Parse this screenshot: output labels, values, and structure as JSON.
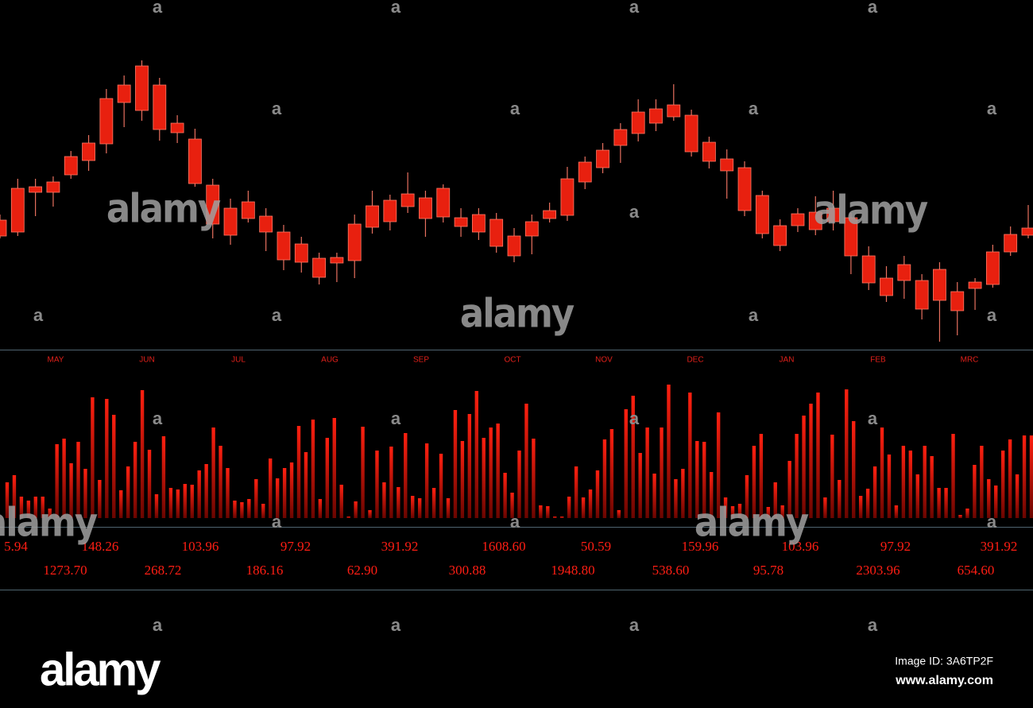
{
  "chart_data": {
    "type": "candlestick",
    "x_labels": [
      "MAY",
      "JUN",
      "JUL",
      "AUG",
      "SEP",
      "OCT",
      "NOV",
      "DEC",
      "JAN",
      "FEB",
      "MRC"
    ],
    "ylim": [
      0,
      360
    ],
    "series": [
      {
        "color": "#e8200f",
        "open": [
          133,
          138,
          188,
          188,
          210,
          228,
          249,
          301,
          291,
          267,
          263,
          199,
          148,
          134,
          155,
          138,
          103,
          100,
          81,
          99,
          102,
          144,
          151,
          170,
          155,
          157,
          145,
          138,
          120,
          108,
          133,
          155,
          159,
          201,
          219,
          247,
          262,
          275,
          283,
          239,
          227,
          215,
          165,
          136,
          121,
          146,
          141,
          151,
          108,
          74,
          58,
          77,
          41,
          52,
          39,
          67,
          72,
          113,
          134
        ],
        "high": [
          160,
          205,
          205,
          208,
          240,
          260,
          318,
          335,
          354,
          332,
          285,
          268,
          205,
          180,
          190,
          168,
          147,
          132,
          112,
          112,
          160,
          190,
          185,
          213,
          190,
          198,
          168,
          168,
          162,
          143,
          160,
          175,
          220,
          233,
          250,
          275,
          305,
          305,
          324,
          292,
          258,
          242,
          227,
          190,
          154,
          168,
          183,
          190,
          162,
          120,
          95,
          108,
          85,
          100,
          75,
          80,
          122,
          145,
          172
        ],
        "low": [
          130,
          133,
          158,
          170,
          205,
          215,
          237,
          270,
          278,
          253,
          250,
          195,
          130,
          122,
          150,
          114,
          90,
          87,
          72,
          75,
          80,
          136,
          140,
          162,
          132,
          150,
          132,
          128,
          112,
          100,
          110,
          150,
          152,
          192,
          212,
          225,
          252,
          265,
          278,
          233,
          218,
          180,
          158,
          130,
          114,
          138,
          134,
          140,
          85,
          65,
          50,
          54,
          28,
          0,
          8,
          40,
          68,
          108,
          130
        ],
        "close": [
          153,
          193,
          195,
          201,
          233,
          250,
          306,
          323,
          347,
          323,
          275,
          255,
          197,
          168,
          176,
          158,
          138,
          123,
          105,
          106,
          148,
          171,
          178,
          186,
          181,
          193,
          156,
          160,
          154,
          133,
          151,
          165,
          205,
          226,
          241,
          267,
          289,
          293,
          298,
          285,
          251,
          230,
          219,
          184,
          146,
          161,
          163,
          168,
          156,
          108,
          80,
          97,
          77,
          91,
          63,
          75,
          113,
          135,
          143
        ]
      }
    ],
    "volume": {
      "type": "bar",
      "color": "#ff1a0a",
      "ylim": [
        0,
        170
      ],
      "values": [
        45,
        54,
        27,
        22,
        27,
        27,
        12,
        93,
        100,
        69,
        96,
        62,
        152,
        48,
        150,
        130,
        35,
        65,
        96,
        161,
        86,
        30,
        103,
        38,
        36,
        43,
        42,
        60,
        68,
        114,
        91,
        63,
        22,
        20,
        24,
        49,
        18,
        75,
        50,
        63,
        70,
        116,
        83,
        124,
        24,
        101,
        126,
        42,
        2,
        21,
        115,
        10,
        85,
        45,
        90,
        39,
        107,
        28,
        25,
        94,
        38,
        81,
        25,
        136,
        97,
        131,
        160,
        101,
        114,
        119,
        57,
        32,
        85,
        144,
        100,
        16,
        15,
        2,
        2,
        27,
        65,
        26,
        36,
        60,
        99,
        112,
        10,
        137,
        154,
        82,
        114,
        56,
        114,
        168,
        49,
        62,
        158,
        97,
        96,
        58,
        133,
        26,
        15,
        18,
        54,
        91,
        106,
        14,
        45,
        16,
        72,
        106,
        129,
        144,
        158,
        26,
        105,
        48,
        162,
        122,
        28,
        37,
        65,
        114,
        80,
        16,
        91,
        85,
        55,
        91,
        78,
        38,
        38,
        106,
        4,
        12,
        67,
        91,
        49,
        41,
        85,
        99,
        55,
        104,
        104
      ]
    },
    "labels_row1": [
      "5.94",
      "148.26",
      "103.96",
      "97.92",
      "391.92",
      "1608.60",
      "50.59",
      "159.96",
      "103.96",
      "97.92",
      "391.92"
    ],
    "labels_row2": [
      "1273.70",
      "268.72",
      "186.16",
      "62.90",
      "300.88",
      "1948.80",
      "538.60",
      "95.78",
      "2303.96",
      "654.60"
    ]
  },
  "watermark": {
    "logo": "alamy",
    "mark": "a",
    "image_id": "Image ID: 3A6TP2F",
    "site": "www.alamy.com"
  }
}
